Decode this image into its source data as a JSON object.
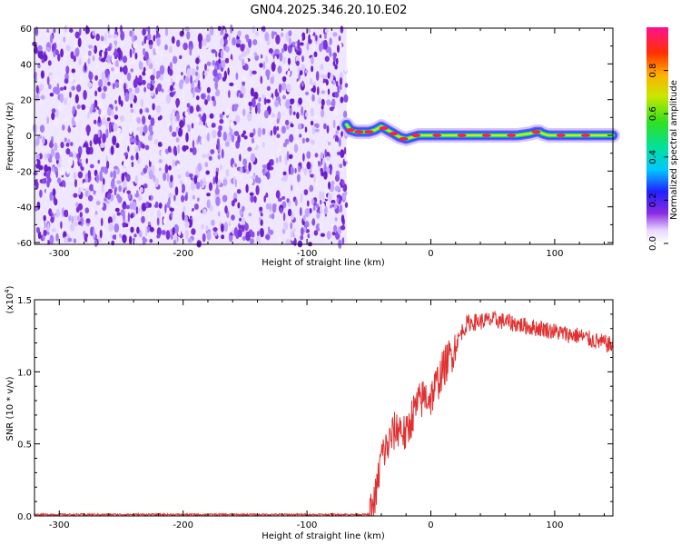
{
  "page": {
    "title": "GN04.2025.346.20.10.E02"
  },
  "chart_data": [
    {
      "type": "heatmap",
      "title": "GN04.2025.346.20.10.E02",
      "xlabel": "Height of straight line (km)",
      "ylabel": "Frequency (Hz)",
      "xlim": [
        -320,
        147
      ],
      "ylim": [
        -61,
        60
      ],
      "xticks": [
        -300,
        -200,
        -100,
        0,
        100
      ],
      "xtick_labels": [
        "-300",
        "-200",
        "-100",
        "0",
        "100"
      ],
      "yticks": [
        60,
        40,
        20,
        0,
        -20,
        -40,
        -60
      ],
      "ytick_labels": [
        "60",
        "40",
        "20",
        "0",
        "-20",
        "-40",
        "-60"
      ],
      "noise_region_x": [
        -320,
        -68
      ],
      "ridge": {
        "x": [
          -68,
          -65,
          -60,
          -55,
          -50,
          -45,
          -40,
          -35,
          -30,
          -25,
          -20,
          -15,
          -10,
          0,
          20,
          40,
          60,
          70,
          80,
          85,
          88,
          90,
          95,
          100,
          120,
          147
        ],
        "freq": [
          6,
          3,
          2,
          2,
          2,
          3,
          5,
          3,
          1,
          -1,
          -2,
          -1,
          0,
          0,
          0,
          0,
          0,
          0,
          1,
          2,
          2,
          1,
          0,
          0,
          0,
          0
        ]
      },
      "colorbar": {
        "label": "Normalized spectral amplitude",
        "range": [
          0,
          1
        ],
        "ticks": [
          0.0,
          0.2,
          0.4,
          0.6,
          0.8
        ],
        "tick_labels": [
          "0.0",
          "0.2",
          "0.4",
          "0.6",
          "0.8"
        ]
      }
    },
    {
      "type": "line",
      "xlabel": "Height of straight line (km)",
      "ylabel": "SNR (10 * v/v)",
      "y_multiplier_label": "(x10",
      "y_multiplier_exp": "4",
      "y_multiplier_close": ")",
      "xlim": [
        -320,
        147
      ],
      "ylim": [
        0,
        1.5
      ],
      "xticks": [
        -300,
        -200,
        -100,
        0,
        100
      ],
      "xtick_labels": [
        "-300",
        "-200",
        "-100",
        "0",
        "100"
      ],
      "yticks": [
        0.0,
        0.5,
        1.0,
        1.5
      ],
      "ytick_labels": [
        "0.0",
        "0.5",
        "1.0",
        "1.5"
      ],
      "color": "#e03030",
      "series": [
        {
          "name": "SNR",
          "x": [
            -320,
            -200,
            -100,
            -50,
            -47,
            -45,
            -43,
            -40,
            -35,
            -30,
            -25,
            -20,
            -15,
            -10,
            -5,
            0,
            5,
            10,
            15,
            20,
            25,
            30,
            40,
            50,
            60,
            70,
            80,
            90,
            100,
            110,
            120,
            130,
            140,
            147
          ],
          "y": [
            0.01,
            0.01,
            0.01,
            0.01,
            0.04,
            0.12,
            0.22,
            0.42,
            0.48,
            0.58,
            0.62,
            0.55,
            0.7,
            0.78,
            0.83,
            0.82,
            0.92,
            1.02,
            1.1,
            1.18,
            1.28,
            1.34,
            1.35,
            1.36,
            1.35,
            1.33,
            1.31,
            1.3,
            1.28,
            1.26,
            1.25,
            1.22,
            1.2,
            1.18
          ]
        }
      ]
    }
  ]
}
